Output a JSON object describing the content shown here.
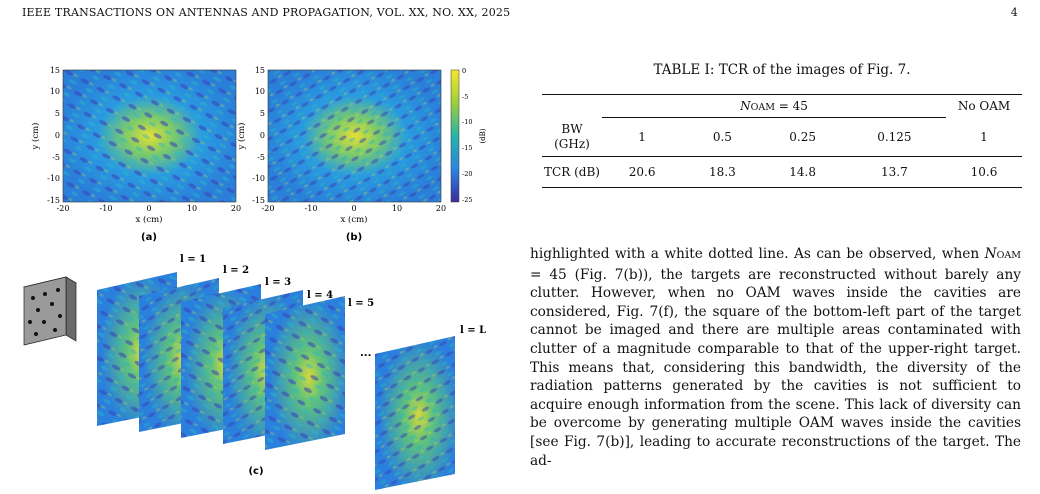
{
  "header": {
    "journal": "IEEE TRANSACTIONS ON ANTENNAS AND PROPAGATION, VOL. XX, NO. XX, 2025",
    "page_number": "4"
  },
  "figure": {
    "panel_a": {
      "label": "(a)",
      "xlabel": "x (cm)",
      "ylabel": "y (cm)",
      "xticks": [
        "-20",
        "-10",
        "0",
        "10",
        "20"
      ],
      "yticks": [
        "15",
        "10",
        "5",
        "0",
        "-5",
        "-10",
        "-15"
      ]
    },
    "panel_b": {
      "label": "(b)",
      "xlabel": "x (cm)",
      "ylabel": "y (cm)",
      "xticks": [
        "-20",
        "-10",
        "0",
        "10",
        "20"
      ],
      "yticks": [
        "15",
        "10",
        "5",
        "0",
        "-5",
        "-10",
        "-15"
      ]
    },
    "colorbar": {
      "unit": "(dB)",
      "ticks": [
        "0",
        "-5",
        "-10",
        "-15",
        "-20",
        "-25"
      ]
    },
    "panel_c": {
      "label": "(c)",
      "layer_labels": [
        "l = 1",
        "l = 2",
        "l = 3",
        "l = 4",
        "l = 5",
        "l = L"
      ],
      "ellipsis": "..."
    },
    "colors": {
      "low": "#3b2fa8",
      "mid": "#2a8ee0",
      "high": "#f2e02a"
    }
  },
  "table": {
    "caption": "TABLE I: TCR of the images of Fig. 7.",
    "group_header_main": "N",
    "group_header_sub": "OAM",
    "group_header_value": " = 45",
    "no_oam_header": "No OAM",
    "row_bw_label_line1": "BW",
    "row_bw_label_line2": "(GHz)",
    "bw_values": [
      "1",
      "0.5",
      "0.25",
      "0.125",
      "1"
    ],
    "row_tcr_label": "TCR (dB)",
    "tcr_values": [
      "20.6",
      "18.3",
      "14.8",
      "13.7",
      "10.6"
    ]
  },
  "body": {
    "t1": "highlighted with a white dotted line. As can be observed, when ",
    "n_main": "N",
    "n_sub": "OAM",
    "t2": " = 45 (Fig. 7(b)), the targets are reconstructed without barely any clutter. However, when no OAM waves inside the cavities are considered, Fig. 7(f), the square of the bottom-left part of the target cannot be imaged and there are multiple areas contaminated with clutter of a magnitude comparable to that of the upper-right target. This means that, considering this bandwidth, the diversity of the radiation patterns generated by the cavities is not sufficient to acquire enough information from the scene. This lack of diversity can be overcome by generating multiple OAM waves inside the cavities [see Fig. 7(b)], leading to accurate reconstructions of the target. The ad-"
  }
}
